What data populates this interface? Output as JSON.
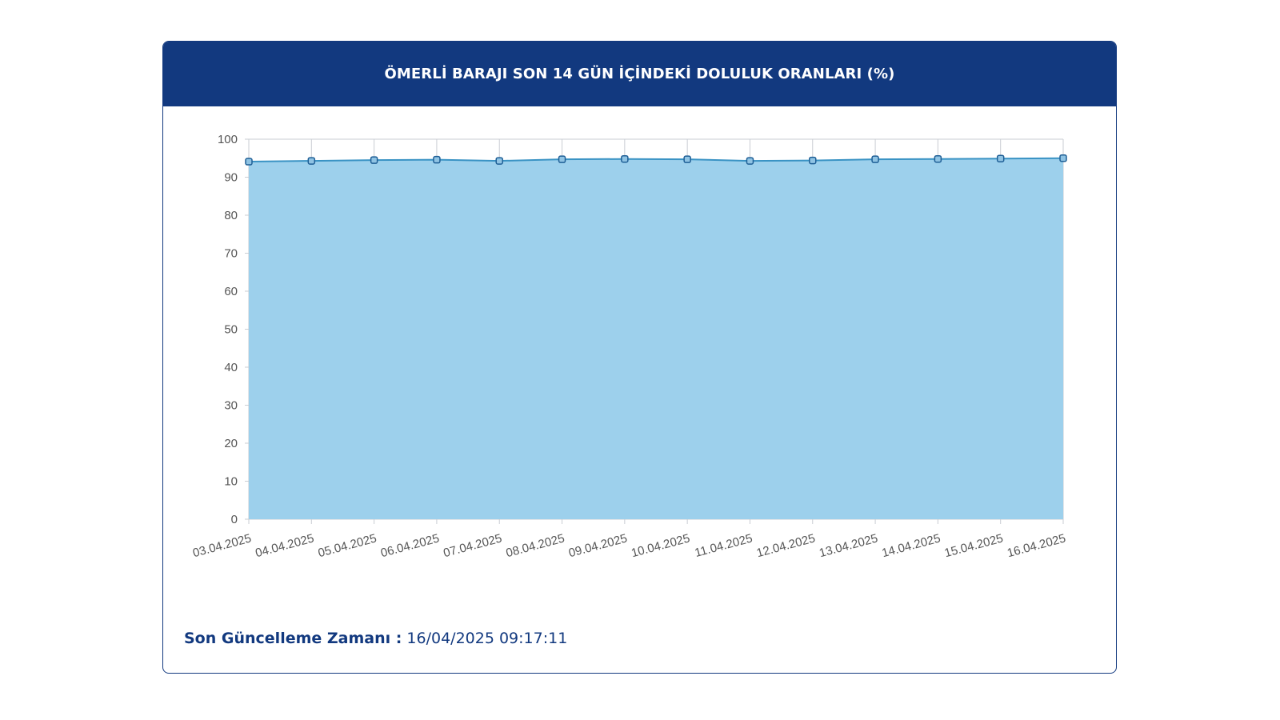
{
  "header": {
    "title": "ÖMERLİ BARAJI SON 14 GÜN İÇİNDEKİ DOLULUK ORANLARI (%)"
  },
  "footer": {
    "label": "Son Güncelleme Zamanı :",
    "value": "16/04/2025 09:17:11"
  },
  "colors": {
    "header_bg": "#12397f",
    "area_fill": "#9dd0ec",
    "line": "#3a93c4",
    "marker_fill": "#8fc3e3",
    "marker_stroke": "#1f5f96",
    "grid": "#c9cdd3"
  },
  "chart_data": {
    "type": "area",
    "title": "ÖMERLİ BARAJI SON 14 GÜN İÇİNDEKİ DOLULUK ORANLARI (%)",
    "xlabel": "",
    "ylabel": "",
    "ylim": [
      0,
      100
    ],
    "yticks": [
      0,
      10,
      20,
      30,
      40,
      50,
      60,
      70,
      80,
      90,
      100
    ],
    "grid": true,
    "legend": "none",
    "categories": [
      "03.04.2025",
      "04.04.2025",
      "05.04.2025",
      "06.04.2025",
      "07.04.2025",
      "08.04.2025",
      "09.04.2025",
      "10.04.2025",
      "11.04.2025",
      "12.04.2025",
      "13.04.2025",
      "14.04.2025",
      "15.04.2025",
      "16.04.2025"
    ],
    "series": [
      {
        "values": [
          94.1,
          94.3,
          94.5,
          94.6,
          94.3,
          94.7,
          94.8,
          94.7,
          94.3,
          94.4,
          94.7,
          94.8,
          94.9,
          95.0
        ]
      }
    ]
  }
}
